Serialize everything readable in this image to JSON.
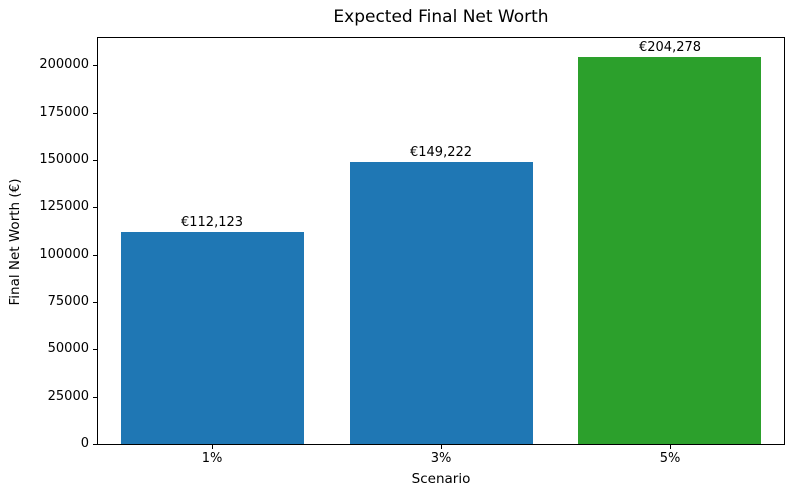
{
  "chart_data": {
    "type": "bar",
    "title": "Expected Final Net Worth",
    "xlabel": "Scenario",
    "ylabel": "Final Net Worth (€)",
    "categories": [
      "1%",
      "3%",
      "5%"
    ],
    "values": [
      112123,
      149222,
      204278
    ],
    "value_labels": [
      "€112,123",
      "€149,222",
      "€204,278"
    ],
    "bar_colors": [
      "#1f77b4",
      "#1f77b4",
      "#2ca02c"
    ],
    "ylim": [
      0,
      214492
    ],
    "yticks": [
      0,
      25000,
      50000,
      75000,
      100000,
      125000,
      150000,
      175000,
      200000
    ],
    "ytick_labels": [
      "0",
      "25000",
      "50000",
      "75000",
      "100000",
      "125000",
      "150000",
      "175000",
      "200000"
    ],
    "grid": false,
    "legend_position": "none",
    "background_color": "#ffffff",
    "spine_color": "#000000"
  }
}
